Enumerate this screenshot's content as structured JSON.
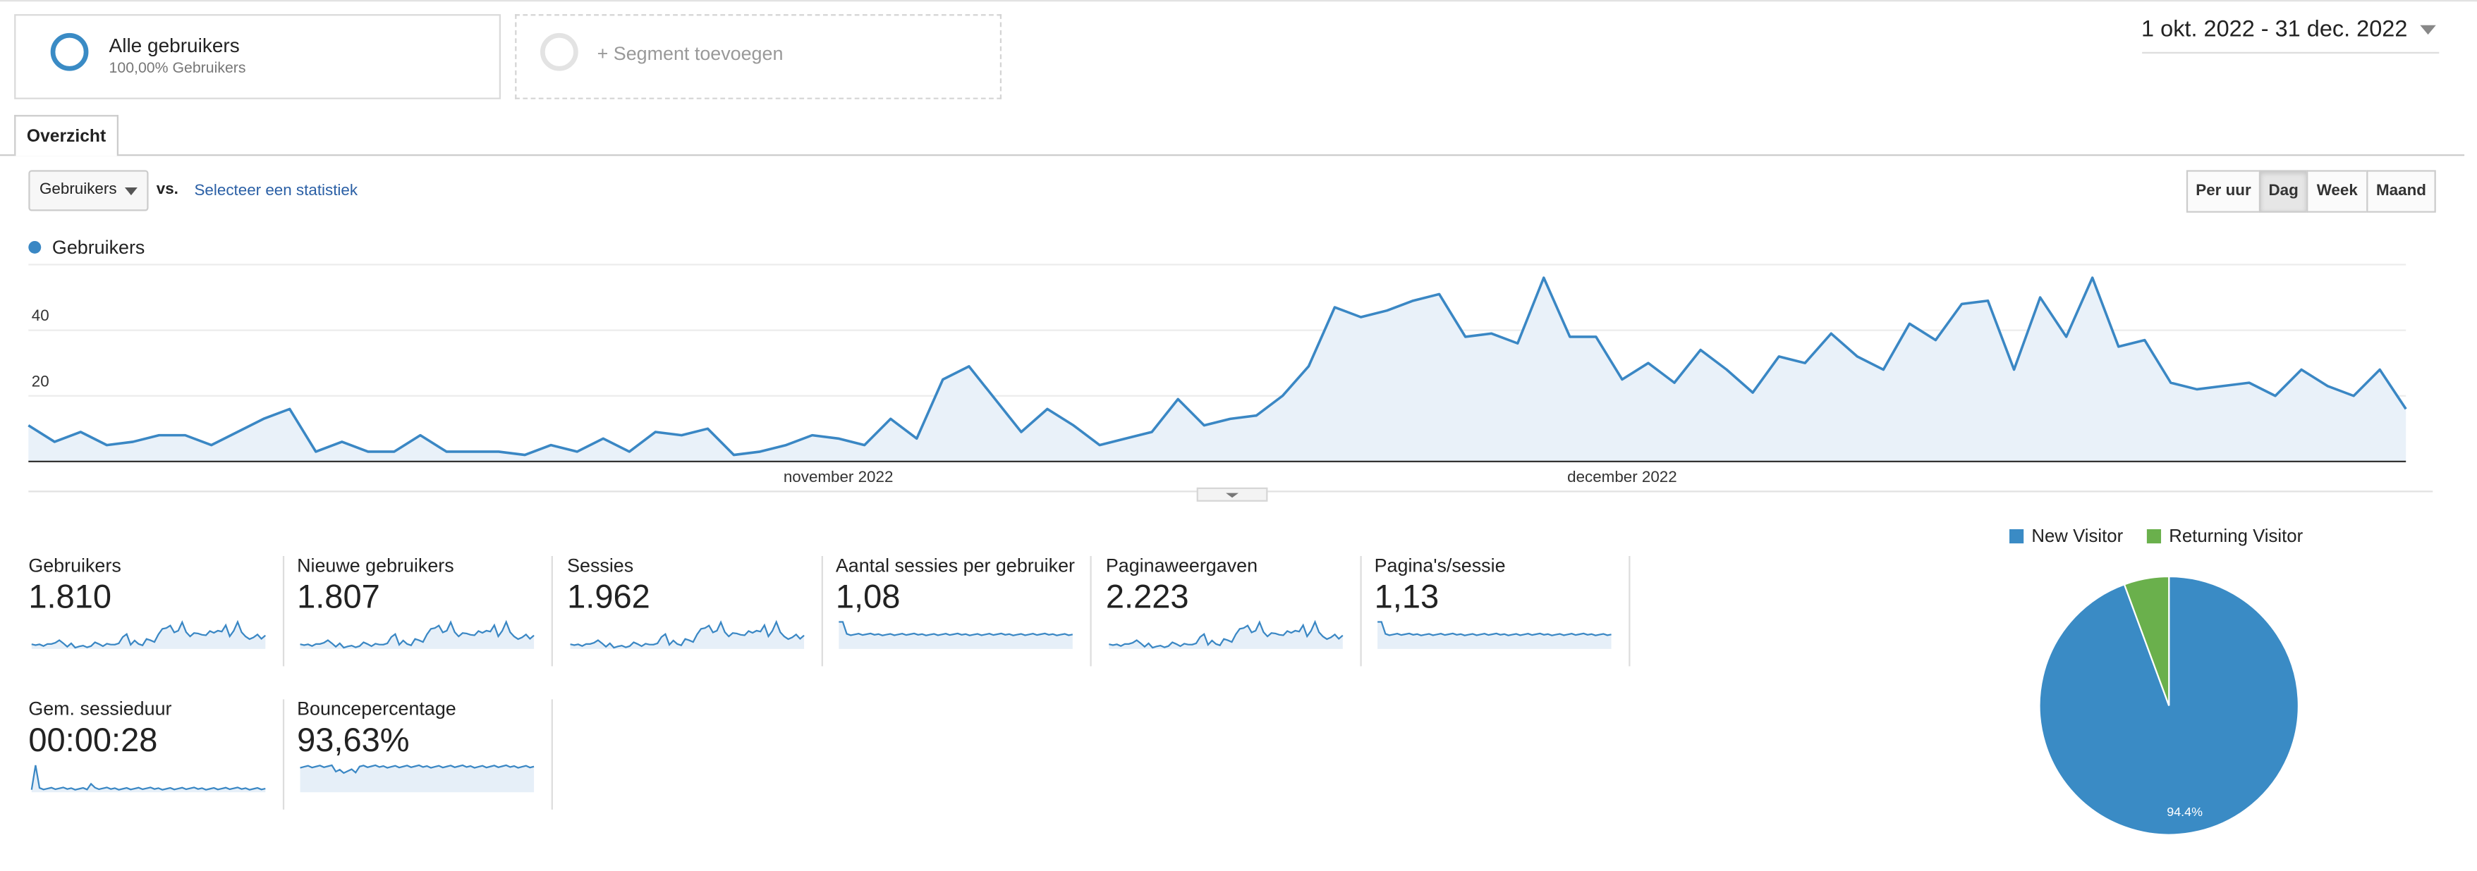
{
  "segments": {
    "active": {
      "title": "Alle gebruikers",
      "subtitle": "100,00% Gebruikers"
    },
    "add_label": "+ Segment toevoegen"
  },
  "date_range": "1 okt. 2022 - 31 dec. 2022",
  "tabs": [
    "Overzicht"
  ],
  "controls": {
    "metric_select": "Gebruikers",
    "vs_label": "vs.",
    "select_stat_link": "Selecteer een statistiek",
    "granularity": [
      "Per uur",
      "Dag",
      "Week",
      "Maand"
    ],
    "granularity_active": "Dag"
  },
  "colors": {
    "accent": "#3a87c4",
    "new_visitor": "#3a8bc5",
    "returning_visitor": "#6ab04c"
  },
  "chart_data": [
    {
      "type": "area",
      "legend": [
        "Gebruikers"
      ],
      "y_ticks": [
        "20",
        "40",
        "60"
      ],
      "ylim": [
        0,
        60
      ],
      "x_ticks": [
        "november 2022",
        "december 2022"
      ],
      "series": [
        {
          "name": "Gebruikers",
          "values": [
            11,
            6,
            9,
            5,
            6,
            8,
            8,
            5,
            9,
            13,
            16,
            3,
            6,
            3,
            3,
            8,
            3,
            3,
            3,
            2,
            5,
            3,
            7,
            3,
            9,
            8,
            10,
            2,
            3,
            5,
            8,
            7,
            5,
            13,
            7,
            25,
            29,
            19,
            9,
            16,
            11,
            5,
            7,
            9,
            19,
            11,
            13,
            14,
            20,
            29,
            47,
            44,
            46,
            49,
            51,
            38,
            39,
            36,
            56,
            38,
            38,
            25,
            30,
            24,
            34,
            28,
            21,
            32,
            30,
            39,
            32,
            28,
            42,
            37,
            48,
            49,
            28,
            50,
            38,
            56,
            35,
            37,
            24,
            22,
            23,
            24,
            20,
            28,
            23,
            20,
            28,
            16
          ]
        }
      ]
    },
    {
      "type": "pie",
      "legend": [
        "New Visitor",
        "Returning Visitor"
      ],
      "values": [
        94.4,
        5.6
      ],
      "slice_labels": [
        "94.4%"
      ]
    }
  ],
  "metrics": [
    {
      "label": "Gebruikers",
      "value": "1.810"
    },
    {
      "label": "Nieuwe gebruikers",
      "value": "1.807"
    },
    {
      "label": "Sessies",
      "value": "1.962"
    },
    {
      "label": "Aantal sessies per gebruiker",
      "value": "1,08"
    },
    {
      "label": "Paginaweergaven",
      "value": "2.223"
    },
    {
      "label": "Pagina's/sessie",
      "value": "1,13"
    },
    {
      "label": "Gem. sessieduur",
      "value": "00:00:28"
    },
    {
      "label": "Bouncepercentage",
      "value": "93,63%"
    }
  ]
}
